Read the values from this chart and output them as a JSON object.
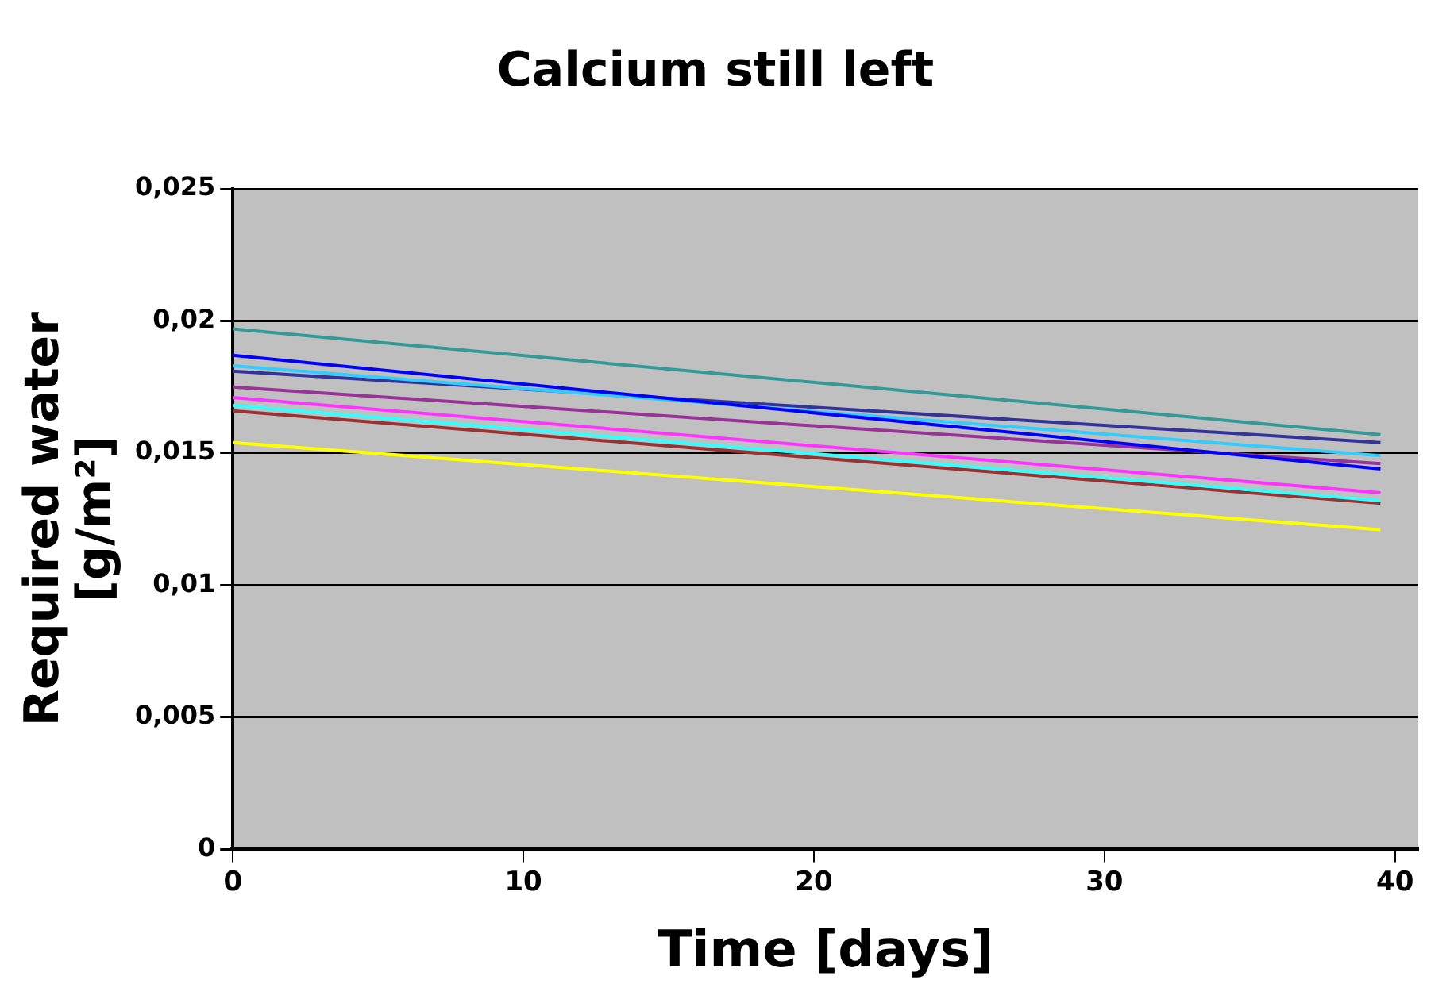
{
  "chart_data": {
    "type": "line",
    "title": "Calcium still left",
    "xlabel": "Time [days]",
    "ylabel": "Required water [g/m²]",
    "x": [
      0,
      39.5
    ],
    "series": [
      {
        "color": "#339999",
        "values": [
          0.0197,
          0.0157
        ]
      },
      {
        "color": "#0000ff",
        "values": [
          0.0187,
          0.0144
        ]
      },
      {
        "color": "#33ccff",
        "values": [
          0.0183,
          0.0149
        ]
      },
      {
        "color": "#333399",
        "values": [
          0.0181,
          0.0154
        ]
      },
      {
        "color": "#993399",
        "values": [
          0.0175,
          0.0146
        ]
      },
      {
        "color": "#ff33ff",
        "values": [
          0.0171,
          0.0135
        ]
      },
      {
        "color": "#33ffff",
        "values": [
          0.0168,
          0.0132
        ]
      },
      {
        "color": "#993333",
        "values": [
          0.0166,
          0.0131
        ]
      },
      {
        "color": "#ffff00",
        "values": [
          0.0154,
          0.0121
        ]
      }
    ],
    "xlim": [
      0,
      40.8
    ],
    "xticks": [
      0,
      10,
      20,
      30,
      40
    ],
    "ylim": [
      0,
      0.025
    ],
    "yticks": [
      0,
      {
        "value": 0.005,
        "label": "0,005"
      },
      {
        "value": 0.01,
        "label": "0,01"
      },
      {
        "value": 0.015,
        "label": "0,015"
      },
      {
        "value": 0.02,
        "label": "0,02"
      },
      {
        "value": 0.025,
        "label": "0,025"
      }
    ],
    "grid": "y",
    "legend": false,
    "marker": "none",
    "line_style": "solid"
  }
}
